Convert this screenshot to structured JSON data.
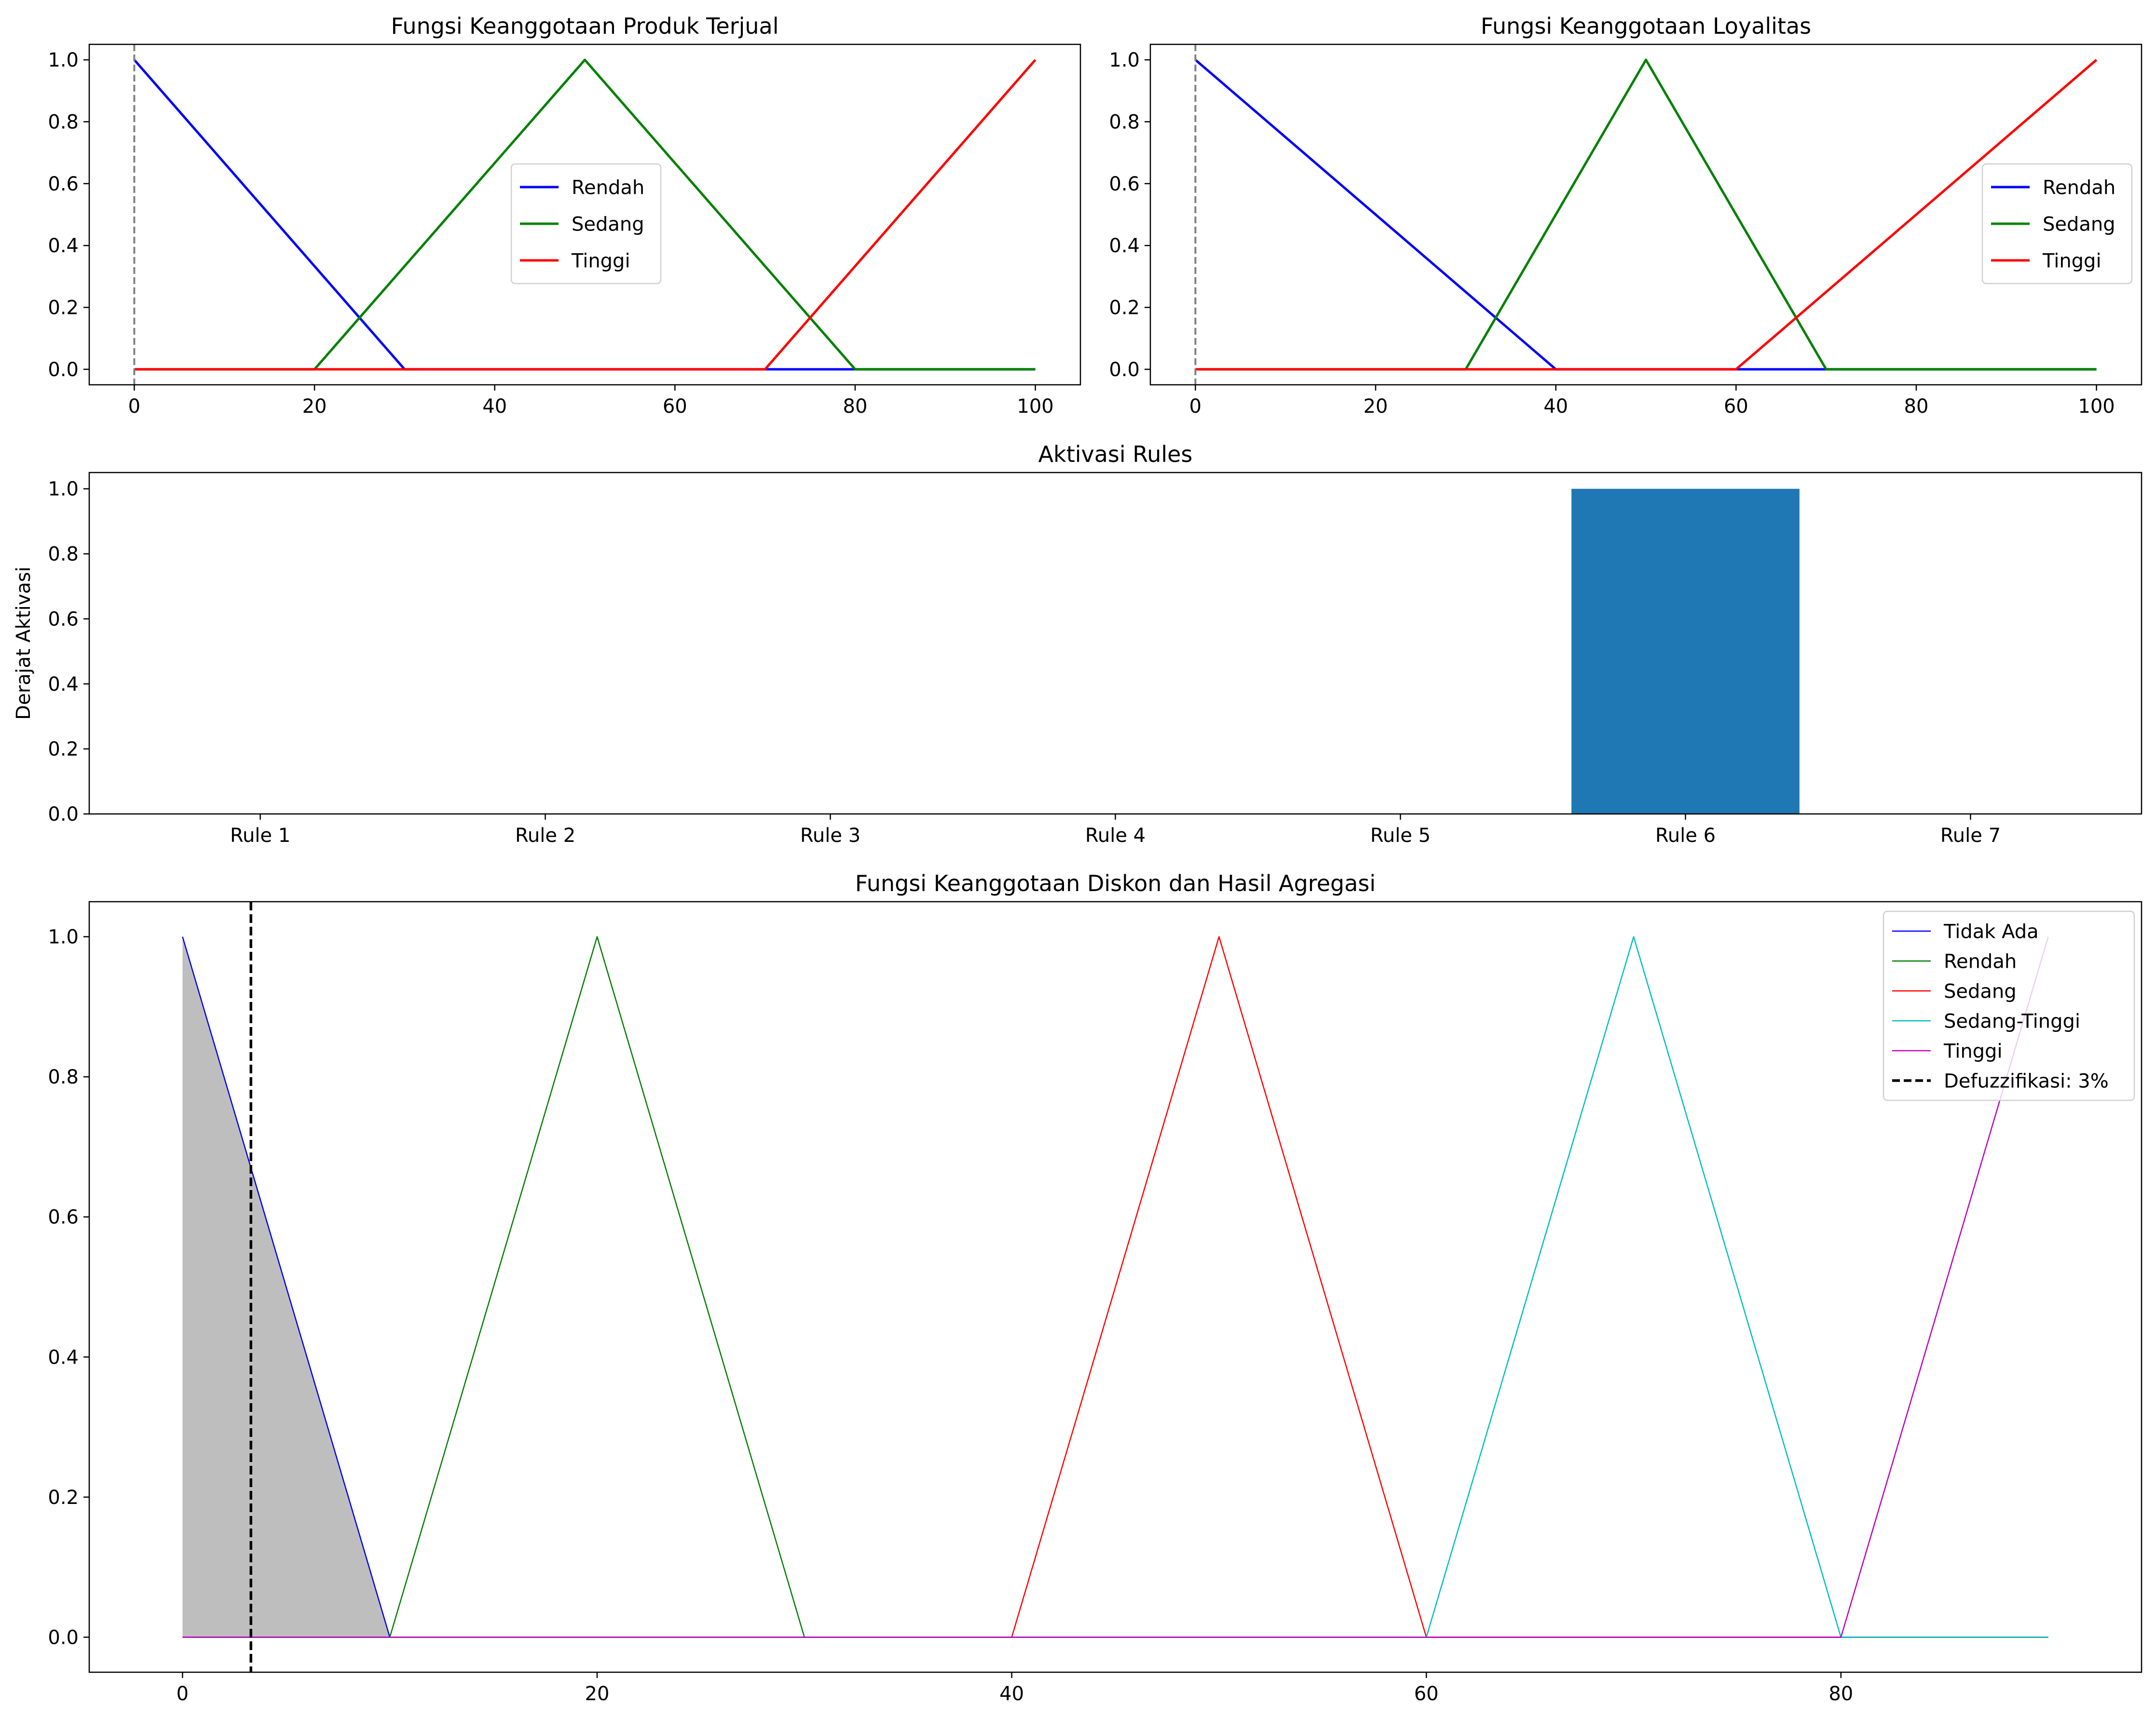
{
  "chart_data": [
    {
      "type": "line",
      "title": "Fungsi Keanggotaan Produk Terjual",
      "xlim": [
        -5,
        105
      ],
      "ylim": [
        -0.05,
        1.05
      ],
      "xticks": [
        0,
        20,
        40,
        60,
        80,
        100
      ],
      "yticks": [
        0.0,
        0.2,
        0.4,
        0.6,
        0.8,
        1.0
      ],
      "ytick_labels": [
        "0.0",
        "0.2",
        "0.4",
        "0.6",
        "0.8",
        "1.0"
      ],
      "marker_x": 0,
      "marker_color": "#808080",
      "legend_position": "center-right",
      "series": [
        {
          "name": "Rendah",
          "color": "#0000ff",
          "x": [
            0,
            30,
            100
          ],
          "y": [
            1,
            0,
            0
          ]
        },
        {
          "name": "Sedang",
          "color": "#008000",
          "x": [
            0,
            20,
            50,
            80,
            100
          ],
          "y": [
            0,
            0,
            1,
            0,
            0
          ]
        },
        {
          "name": "Tinggi",
          "color": "#ff0000",
          "x": [
            0,
            70,
            100
          ],
          "y": [
            0,
            0,
            1
          ]
        }
      ]
    },
    {
      "type": "line",
      "title": "Fungsi Keanggotaan Loyalitas",
      "xlim": [
        -5,
        105
      ],
      "ylim": [
        -0.05,
        1.05
      ],
      "xticks": [
        0,
        20,
        40,
        60,
        80,
        100
      ],
      "yticks": [
        0.0,
        0.2,
        0.4,
        0.6,
        0.8,
        1.0
      ],
      "ytick_labels": [
        "0.0",
        "0.2",
        "0.4",
        "0.6",
        "0.8",
        "1.0"
      ],
      "marker_x": 0,
      "marker_color": "#808080",
      "legend_position": "right",
      "series": [
        {
          "name": "Rendah",
          "color": "#0000ff",
          "x": [
            0,
            40,
            100
          ],
          "y": [
            1,
            0,
            0
          ]
        },
        {
          "name": "Sedang",
          "color": "#008000",
          "x": [
            0,
            30,
            50,
            70,
            100
          ],
          "y": [
            0,
            0,
            1,
            0,
            0
          ]
        },
        {
          "name": "Tinggi",
          "color": "#ff0000",
          "x": [
            0,
            60,
            100
          ],
          "y": [
            0,
            0,
            1
          ]
        }
      ]
    },
    {
      "type": "bar",
      "title": "Aktivasi Rules",
      "ylabel": "Derajat Aktivasi",
      "categories": [
        "Rule 1",
        "Rule 2",
        "Rule 3",
        "Rule 4",
        "Rule 5",
        "Rule 6",
        "Rule 7"
      ],
      "values": [
        0,
        0,
        0,
        0,
        0,
        1,
        0
      ],
      "ylim": [
        0,
        1.05
      ],
      "yticks": [
        0.0,
        0.2,
        0.4,
        0.6,
        0.8,
        1.0
      ],
      "ytick_labels": [
        "0.0",
        "0.2",
        "0.4",
        "0.6",
        "0.8",
        "1.0"
      ],
      "bar_color": "#1f77b4"
    },
    {
      "type": "line",
      "title": "Fungsi Keanggotaan Diskon dan Hasil Agregasi",
      "xlim": [
        -4.5,
        94.5
      ],
      "ylim": [
        -0.05,
        1.05
      ],
      "xticks": [
        0,
        20,
        40,
        60,
        80
      ],
      "yticks": [
        0.0,
        0.2,
        0.4,
        0.6,
        0.8,
        1.0
      ],
      "ytick_labels": [
        "0.0",
        "0.2",
        "0.4",
        "0.6",
        "0.8",
        "1.0"
      ],
      "legend_position": "upper right",
      "fill": {
        "x": [
          0,
          10
        ],
        "y": [
          1,
          0
        ],
        "color": "#bebebe"
      },
      "defuzzification": {
        "x": 3.3,
        "label": "Defuzzifikasi: 3%",
        "color": "#000000"
      },
      "series": [
        {
          "name": "Tidak Ada",
          "color": "#0000ff",
          "x": [
            0,
            10,
            90
          ],
          "y": [
            1,
            0,
            0
          ]
        },
        {
          "name": "Rendah",
          "color": "#008000",
          "x": [
            0,
            10,
            20,
            30,
            90
          ],
          "y": [
            0,
            0,
            1,
            0,
            0
          ]
        },
        {
          "name": "Sedang",
          "color": "#ff0000",
          "x": [
            0,
            40,
            50,
            60,
            90
          ],
          "y": [
            0,
            0,
            1,
            0,
            0
          ]
        },
        {
          "name": "Sedang-Tinggi",
          "color": "#00bfbf",
          "x": [
            0,
            60,
            70,
            80,
            90
          ],
          "y": [
            0,
            0,
            1,
            0,
            0
          ]
        },
        {
          "name": "Tinggi",
          "color": "#bf00bf",
          "x": [
            0,
            80,
            90
          ],
          "y": [
            0,
            0,
            1
          ]
        }
      ]
    }
  ]
}
